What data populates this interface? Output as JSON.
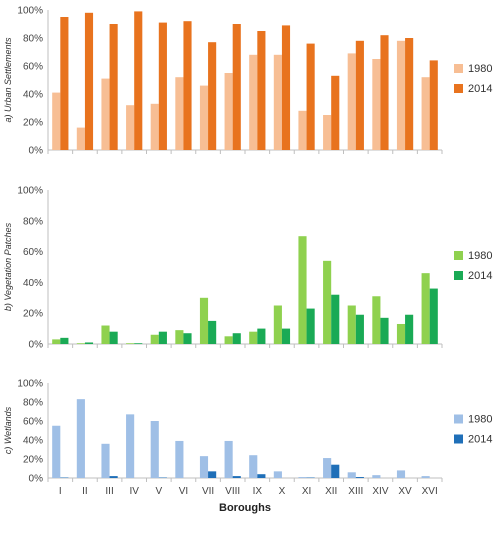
{
  "chart_data": [
    {
      "type": "bar",
      "ylabel": "a) Urban Settlements",
      "ylim": [
        0,
        100
      ],
      "yticks": [
        "0%",
        "20%",
        "40%",
        "60%",
        "80%",
        "100%"
      ],
      "categories": [
        "I",
        "II",
        "III",
        "IV",
        "V",
        "VI",
        "VII",
        "VIII",
        "IX",
        "X",
        "XI",
        "XII",
        "XIII",
        "XIV",
        "XV",
        "XVI"
      ],
      "legend_position": "right",
      "series": [
        {
          "name": "1980",
          "color": "#f7be94",
          "values": [
            41,
            16,
            51,
            32,
            33,
            52,
            46,
            55,
            68,
            68,
            28,
            25,
            69,
            65,
            78,
            52
          ]
        },
        {
          "name": "2014",
          "color": "#e8731e",
          "values": [
            95,
            98,
            90,
            99,
            91,
            92,
            77,
            90,
            85,
            89,
            76,
            53,
            78,
            82,
            80,
            64
          ]
        }
      ]
    },
    {
      "type": "bar",
      "ylabel": "b) Vegetation Patches",
      "ylim": [
        0,
        100
      ],
      "yticks": [
        "0%",
        "20%",
        "40%",
        "60%",
        "80%",
        "100%"
      ],
      "categories": [
        "I",
        "II",
        "III",
        "IV",
        "V",
        "VI",
        "VII",
        "VIII",
        "IX",
        "X",
        "XI",
        "XII",
        "XIII",
        "XIV",
        "XV",
        "XVI"
      ],
      "legend_position": "right",
      "series": [
        {
          "name": "1980",
          "color": "#8fd14f",
          "values": [
            3,
            0.5,
            12,
            0.5,
            6,
            9,
            30,
            5,
            8,
            25,
            70,
            54,
            25,
            31,
            13,
            46
          ]
        },
        {
          "name": "2014",
          "color": "#1aaa55",
          "values": [
            4,
            1,
            8,
            0.5,
            8,
            7,
            15,
            7,
            10,
            10,
            23,
            32,
            19,
            17,
            19,
            36
          ]
        }
      ]
    },
    {
      "type": "bar",
      "ylabel": "c) Wetlands",
      "xlabel": "Boroughs",
      "ylim": [
        0,
        100
      ],
      "yticks": [
        "0%",
        "20%",
        "40%",
        "60%",
        "80%",
        "100%"
      ],
      "categories": [
        "I",
        "II",
        "III",
        "IV",
        "V",
        "VI",
        "VII",
        "VIII",
        "IX",
        "X",
        "XI",
        "XII",
        "XIII",
        "XIV",
        "XV",
        "XVI"
      ],
      "legend_position": "right",
      "series": [
        {
          "name": "1980",
          "color": "#9fbfe6",
          "values": [
            55,
            83,
            36,
            67,
            60,
            39,
            23,
            39,
            24,
            7,
            1,
            21,
            6,
            3,
            8,
            2
          ]
        },
        {
          "name": "2014",
          "color": "#1f6fb8",
          "values": [
            0.5,
            0,
            2,
            0,
            0.5,
            0,
            7,
            2,
            4,
            0,
            0.5,
            14,
            1,
            0,
            0,
            0
          ]
        }
      ]
    }
  ]
}
